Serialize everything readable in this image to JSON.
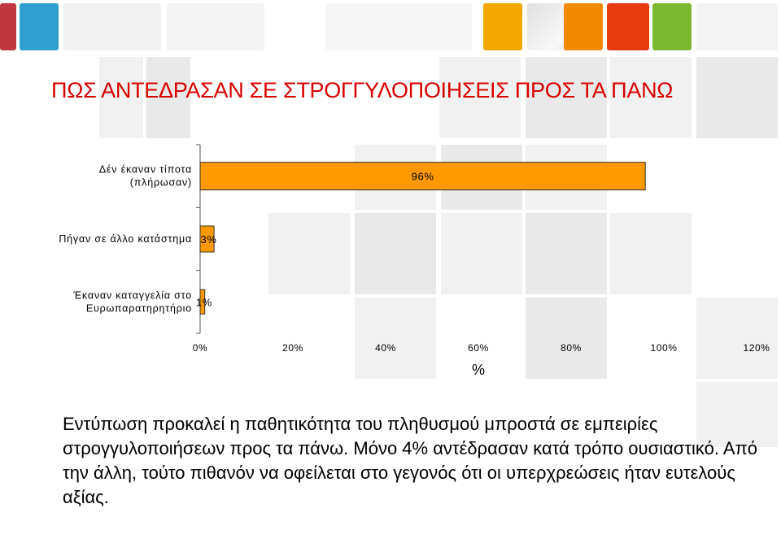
{
  "slide": {
    "title": "ΠΩΣ ΑΝΤΕΔΡΑΣΑΝ ΣΕ ΣΤΡΟΓΓΥΛΟΠΟΙΗΣΕΙΣ ΠΡΟΣ ΤΑ ΠΑΝΩ",
    "description": "Εντύπωση προκαλεί η παθητικότητα του πληθυσμού μπροστά σε εμπειρίες στρογγυλοποιήσεων προς τα πάνω. Μόνο 4% αντέδρασαν κατά τρόπο ουσιαστικό. Από την άλλη, τούτο πιθανόν να οφείλεται στο γεγονός ότι οι υπερχρεώσεις ήταν ευτελούς αξίας.",
    "colors": {
      "title": "#d90000",
      "bar_fill": "#ff9900",
      "deco": [
        "#c0363f",
        "#2f9fd0",
        "#f2a800",
        "#f28a00",
        "#e83a0f",
        "#7cb82f"
      ]
    }
  },
  "chart_data": {
    "type": "bar",
    "orientation": "horizontal",
    "categories": [
      [
        "Δέν έκαναν τίποτα",
        "(πλήρωσαν)"
      ],
      [
        "Πήγαν σε άλλο κατάστημα"
      ],
      [
        "Έκαναν καταγγελία στο",
        "Ευρωπαρατηρητήριο"
      ]
    ],
    "values": [
      96,
      3,
      1
    ],
    "data_labels": [
      "96%",
      "3%",
      "1%"
    ],
    "xlabel": "%",
    "xlim": [
      0,
      120
    ],
    "xticks": [
      "0%",
      "20%",
      "40%",
      "60%",
      "80%",
      "100%",
      "120%"
    ],
    "grid": false,
    "legend": "none",
    "bar_color": "#ff9900"
  }
}
